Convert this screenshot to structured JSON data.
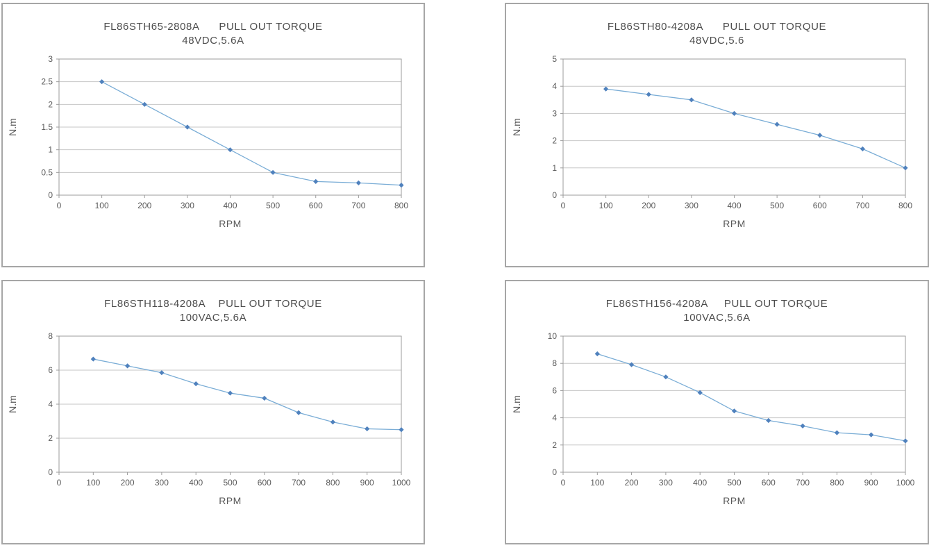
{
  "colors": {
    "line": "#7aadd6",
    "marker": "#4f81bd",
    "gridline": "#c6c6c6",
    "plot_border": "#9b9b9b",
    "axis_text": "#595959",
    "panel_border": "#a6a6a6"
  },
  "chart_data": [
    {
      "type": "line",
      "title": "FL86STH65-2808A      PULL OUT TORQUE",
      "subtitle": "48VDC,5.6A",
      "xlabel": "RPM",
      "ylabel": "N.m",
      "x": [
        100,
        200,
        300,
        400,
        500,
        600,
        700,
        800
      ],
      "y": [
        2.5,
        2.0,
        1.5,
        1.0,
        0.5,
        0.3,
        0.27,
        0.22
      ],
      "xlim": [
        0,
        800
      ],
      "ylim": [
        0,
        3
      ],
      "xtick_step": 100,
      "ytick_step": 0.5,
      "grid": "horizontal",
      "legend": "none"
    },
    {
      "type": "line",
      "title": "FL86STH80-4208A      PULL OUT TORQUE",
      "subtitle": "48VDC,5.6",
      "xlabel": "RPM",
      "ylabel": "N.m",
      "x": [
        100,
        200,
        300,
        400,
        500,
        600,
        700,
        800
      ],
      "y": [
        3.9,
        3.7,
        3.5,
        3.0,
        2.6,
        2.2,
        1.7,
        1.0
      ],
      "xlim": [
        0,
        800
      ],
      "ylim": [
        0,
        5
      ],
      "xtick_step": 100,
      "ytick_step": 1,
      "grid": "horizontal",
      "legend": "none"
    },
    {
      "type": "line",
      "title": "FL86STH118-4208A    PULL OUT TORQUE",
      "subtitle": "100VAC,5.6A",
      "xlabel": "RPM",
      "ylabel": "N.m",
      "x": [
        100,
        200,
        300,
        400,
        500,
        600,
        700,
        800,
        900,
        1000
      ],
      "y": [
        6.65,
        6.25,
        5.85,
        5.2,
        4.65,
        4.35,
        3.5,
        2.95,
        2.55,
        2.5
      ],
      "xlim": [
        0,
        1000
      ],
      "ylim": [
        0,
        8
      ],
      "xtick_step": 100,
      "ytick_step": 2,
      "grid": "horizontal",
      "legend": "none"
    },
    {
      "type": "line",
      "title": "FL86STH156-4208A     PULL OUT TORQUE",
      "subtitle": "100VAC,5.6A",
      "xlabel": "RPM",
      "ylabel": "N.m",
      "x": [
        100,
        200,
        300,
        400,
        500,
        600,
        700,
        800,
        900,
        1000
      ],
      "y": [
        8.7,
        7.9,
        7.0,
        5.85,
        4.5,
        3.8,
        3.4,
        2.9,
        2.75,
        2.3
      ],
      "xlim": [
        0,
        1000
      ],
      "ylim": [
        0,
        10
      ],
      "xtick_step": 100,
      "ytick_step": 2,
      "grid": "horizontal",
      "legend": "none"
    }
  ]
}
